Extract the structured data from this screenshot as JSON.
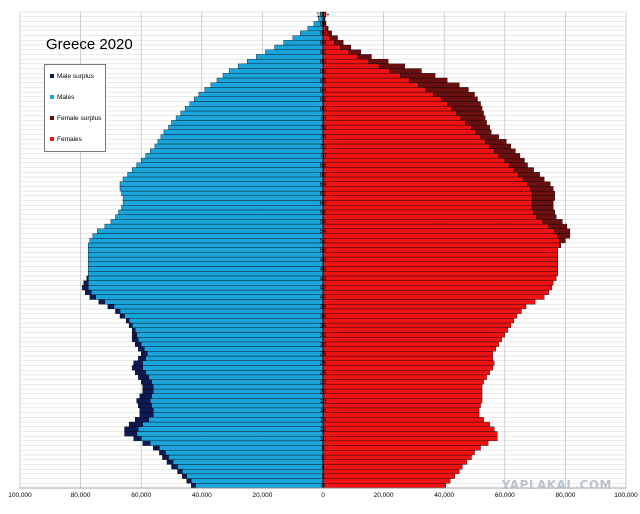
{
  "chart_data": {
    "type": "bar",
    "orientation": "horizontal",
    "subtype": "population-pyramid",
    "title": "Greece 2020",
    "x_ticks": [
      "100,000",
      "80,000",
      "60,000",
      "40,000",
      "20,000",
      "0",
      "20,000",
      "40,000",
      "60,000",
      "80,000",
      "100,000"
    ],
    "xlim": [
      -100000,
      100000
    ],
    "age_ticks": [
      "0",
      "2",
      "4",
      "6",
      "8",
      "10",
      "12",
      "14",
      "16",
      "18",
      "20",
      "22",
      "24",
      "26",
      "28",
      "30",
      "32",
      "34",
      "36",
      "38",
      "40",
      "42",
      "44",
      "46",
      "48",
      "50",
      "52",
      "54",
      "56",
      "58",
      "60",
      "62",
      "64",
      "66",
      "68",
      "70",
      "72",
      "74",
      "76",
      "78",
      "80",
      "82",
      "84",
      "86",
      "88",
      "90",
      "92",
      "94",
      "96",
      "98",
      "100+"
    ],
    "ages": [
      "0",
      "1",
      "2",
      "3",
      "4",
      "5",
      "6",
      "7",
      "8",
      "9",
      "10",
      "11",
      "12",
      "13",
      "14",
      "15",
      "16",
      "17",
      "18",
      "19",
      "20",
      "21",
      "22",
      "23",
      "24",
      "25",
      "26",
      "27",
      "28",
      "29",
      "30",
      "31",
      "32",
      "33",
      "34",
      "35",
      "36",
      "37",
      "38",
      "39",
      "40",
      "41",
      "42",
      "43",
      "44",
      "45",
      "46",
      "47",
      "48",
      "49",
      "50",
      "51",
      "52",
      "53",
      "54",
      "55",
      "56",
      "57",
      "58",
      "59",
      "60",
      "61",
      "62",
      "63",
      "64",
      "65",
      "66",
      "67",
      "68",
      "69",
      "70",
      "71",
      "72",
      "73",
      "74",
      "75",
      "76",
      "77",
      "78",
      "79",
      "80",
      "81",
      "82",
      "83",
      "84",
      "85",
      "86",
      "87",
      "88",
      "89",
      "90",
      "91",
      "92",
      "93",
      "94",
      "95",
      "96",
      "97",
      "98",
      "99",
      "100+"
    ],
    "series": [
      {
        "name": "Males",
        "values": [
          42000,
          43500,
          45000,
          46500,
          48000,
          49500,
          51000,
          52000,
          54000,
          57000,
          60000,
          61500,
          61000,
          59500,
          57500,
          56000,
          56000,
          56500,
          57000,
          56500,
          56000,
          56000,
          56500,
          57500,
          58500,
          59500,
          59500,
          58500,
          58000,
          59000,
          60000,
          61000,
          61500,
          62000,
          63000,
          64000,
          65500,
          67000,
          69000,
          72000,
          75000,
          76500,
          77500,
          77500,
          77500,
          77500,
          77500,
          77500,
          77500,
          77500,
          77500,
          77500,
          77000,
          76000,
          74500,
          72000,
          70000,
          68500,
          67500,
          66500,
          66000,
          66000,
          66500,
          67000,
          67000,
          66000,
          64500,
          63000,
          61500,
          60000,
          58500,
          57000,
          55500,
          54500,
          53500,
          52500,
          51000,
          50000,
          48500,
          47000,
          45500,
          44000,
          42500,
          41000,
          39000,
          37000,
          35000,
          33000,
          31000,
          28000,
          25000,
          22000,
          19000,
          16000,
          13000,
          10000,
          7500,
          5000,
          3000,
          1500,
          1000
        ]
      },
      {
        "name": "Females",
        "values": [
          40500,
          42000,
          43500,
          45000,
          46000,
          47500,
          49000,
          50000,
          52000,
          54500,
          57500,
          57500,
          56500,
          55000,
          53000,
          51500,
          51500,
          52000,
          52500,
          52500,
          52500,
          52500,
          53000,
          54000,
          55000,
          56000,
          56500,
          56000,
          56000,
          57000,
          58000,
          59000,
          60000,
          61000,
          62000,
          63000,
          64000,
          65500,
          67000,
          70000,
          73000,
          74500,
          75500,
          76000,
          77000,
          77500,
          77500,
          77500,
          77500,
          77500,
          77500,
          78000,
          78000,
          77500,
          76500,
          74500,
          72500,
          70500,
          69500,
          69000,
          69000,
          69000,
          69000,
          68500,
          67500,
          66000,
          64500,
          63000,
          61500,
          60000,
          58000,
          56500,
          55000,
          53500,
          52000,
          50500,
          49000,
          47000,
          45500,
          44000,
          42500,
          41000,
          39000,
          36500,
          34000,
          31500,
          28500,
          25500,
          22000,
          18500,
          15000,
          11500,
          8500,
          5700,
          3700,
          2300,
          1400,
          900,
          600,
          500,
          1000
        ]
      },
      {
        "name": "Male surplus",
        "values": [
          1500,
          1500,
          1500,
          1500,
          2000,
          2000,
          2000,
          2000,
          2000,
          2500,
          2500,
          4000,
          4500,
          4500,
          4500,
          4500,
          4500,
          4500,
          4500,
          4000,
          3500,
          3500,
          3500,
          3500,
          3500,
          3500,
          3000,
          2500,
          2000,
          2000,
          2000,
          2000,
          1500,
          1000,
          1000,
          1000,
          1500,
          1500,
          2000,
          2000,
          2000,
          2000,
          2000,
          1500,
          500,
          0,
          0,
          0,
          0,
          0,
          0,
          0,
          0,
          0,
          0,
          0,
          0,
          0,
          0,
          0,
          0,
          0,
          0,
          0,
          0,
          0,
          0,
          0,
          0,
          0,
          0,
          0,
          0,
          0,
          0,
          0,
          0,
          0,
          0,
          0,
          0,
          0,
          0,
          0,
          0,
          0,
          0,
          0,
          0,
          0,
          0,
          0,
          0,
          0,
          0,
          0,
          0,
          0,
          0,
          0,
          0
        ]
      },
      {
        "name": "Female surplus",
        "values": [
          0,
          0,
          0,
          0,
          0,
          0,
          0,
          0,
          0,
          0,
          0,
          0,
          0,
          0,
          0,
          0,
          0,
          0,
          0,
          0,
          0,
          0,
          0,
          0,
          0,
          0,
          0,
          0,
          0,
          0,
          0,
          0,
          0,
          0,
          0,
          0,
          0,
          0,
          0,
          0,
          0,
          0,
          0,
          0,
          0,
          0,
          0,
          0,
          0,
          0,
          0,
          500,
          2000,
          4000,
          5000,
          6000,
          6500,
          6500,
          7000,
          7000,
          7000,
          7500,
          7500,
          7500,
          7500,
          7000,
          7000,
          6500,
          6000,
          6500,
          7000,
          7000,
          7000,
          7000,
          6000,
          5000,
          6000,
          7000,
          8000,
          9000,
          10000,
          11000,
          12000,
          13500,
          14000,
          13500,
          12500,
          11500,
          10500,
          8500,
          6500,
          4500,
          4000,
          3500,
          3000,
          2500,
          1500,
          800,
          400,
          200,
          0
        ]
      }
    ],
    "colors": {
      "Males": "#1aa4dc",
      "Females": "#ee1212",
      "Male surplus": "#0d1a55",
      "Female surplus": "#6a0f0f"
    },
    "legend": {
      "position": "top-left",
      "entries": [
        "Male surplus",
        "Males",
        "Female surplus",
        "Females"
      ]
    },
    "grid": true
  },
  "watermark": "YAPLAKAL.COM"
}
